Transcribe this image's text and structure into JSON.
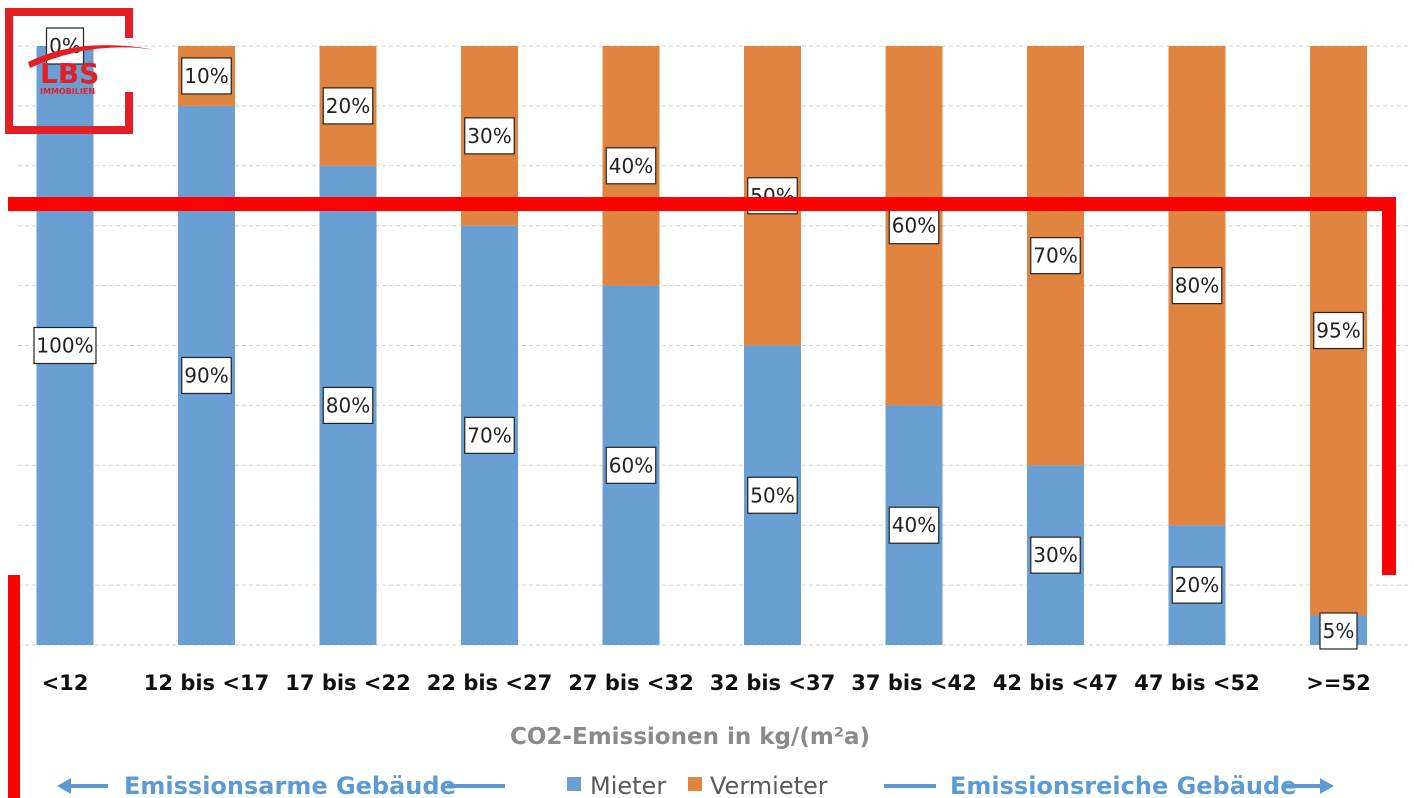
{
  "colors": {
    "mieter": "#6a9fd4",
    "vermieter": "#e0843f",
    "frame": "#ff0000",
    "accent_blue": "#5b9bd5",
    "logo_red": "#e31e24"
  },
  "logo": {
    "name": "LBS",
    "subtitle": "IMMOBILIEN"
  },
  "chart_data": {
    "type": "bar",
    "stacked": true,
    "categories": [
      "<12",
      "12 bis <17",
      "17 bis <22",
      "22 bis <27",
      "27 bis <32",
      "32 bis <37",
      "37 bis <42",
      "42 bis <47",
      "47 bis <52",
      ">=52"
    ],
    "series": [
      {
        "name": "Mieter",
        "values": [
          100,
          90,
          80,
          70,
          60,
          50,
          40,
          30,
          20,
          5
        ]
      },
      {
        "name": "Vermieter",
        "values": [
          0,
          10,
          20,
          30,
          40,
          50,
          60,
          70,
          80,
          95
        ]
      }
    ],
    "data_labels": {
      "Mieter": [
        "100%",
        "90%",
        "80%",
        "70%",
        "60%",
        "50%",
        "40%",
        "30%",
        "20%",
        "5%"
      ],
      "Vermieter": [
        "0%",
        "10%",
        "20%",
        "30%",
        "40%",
        "50%",
        "60%",
        "70%",
        "80%",
        "95%"
      ]
    },
    "xlabel": "CO2-Emissionen in kg/(m²a)",
    "ylim": [
      0,
      100
    ],
    "grid": true,
    "legend": {
      "placement": "bottom",
      "entries": [
        "Mieter",
        "Vermieter"
      ]
    },
    "annotations": {
      "left": "Emissionsarme Gebäude",
      "right": "Emissionsreiche Gebäude"
    }
  }
}
